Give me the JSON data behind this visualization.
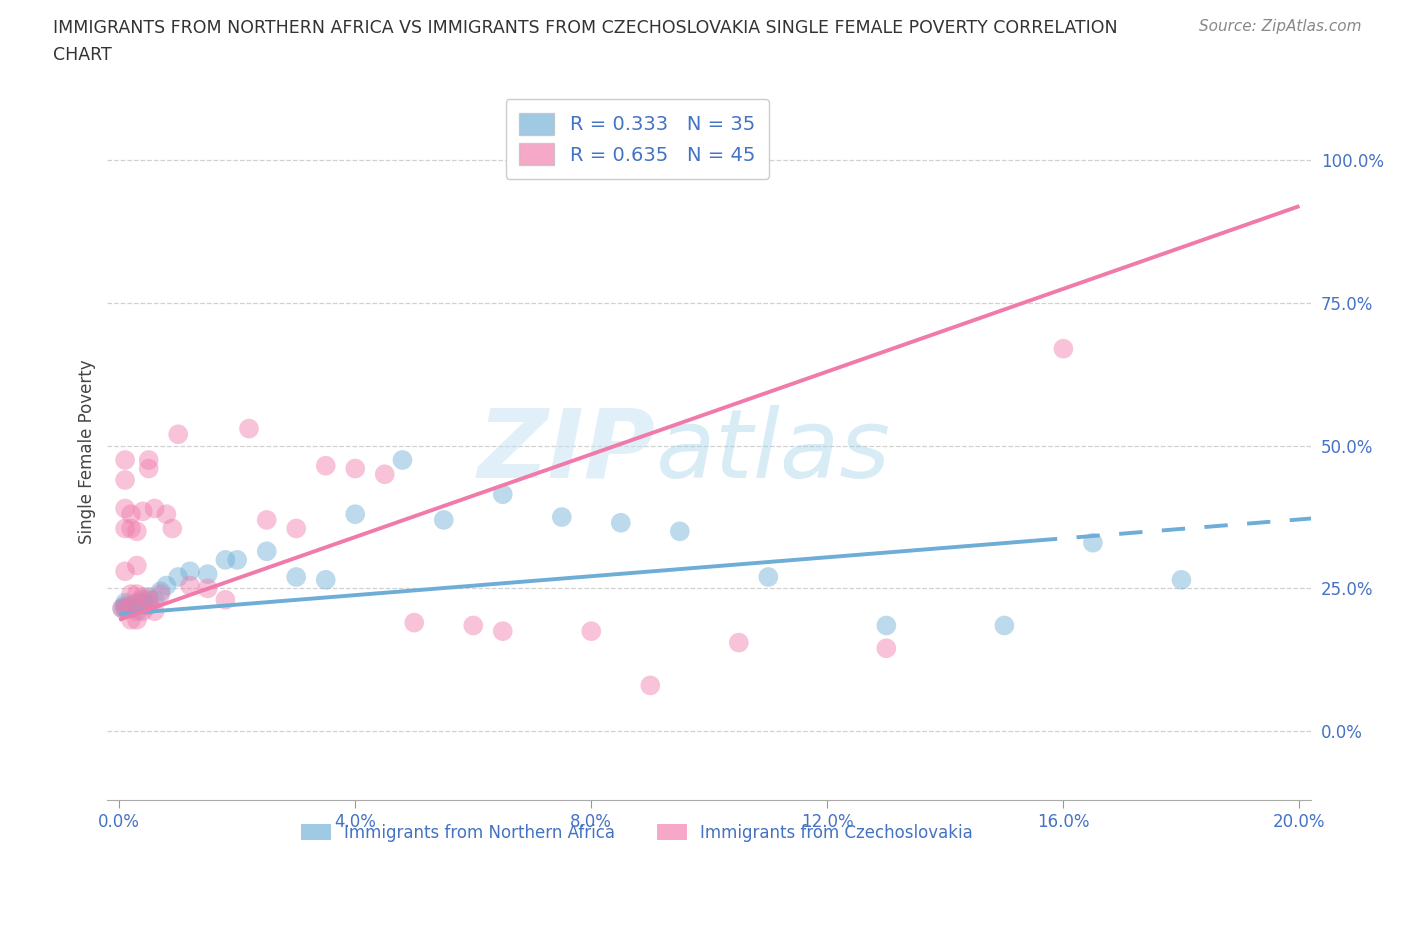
{
  "title_line1": "IMMIGRANTS FROM NORTHERN AFRICA VS IMMIGRANTS FROM CZECHOSLOVAKIA SINGLE FEMALE POVERTY CORRELATION",
  "title_line2": "CHART",
  "source": "Source: ZipAtlas.com",
  "ylabel": "Single Female Poverty",
  "xlim": [
    -0.002,
    0.202
  ],
  "ylim": [
    -0.12,
    1.1
  ],
  "xticks": [
    0.0,
    0.04,
    0.08,
    0.12,
    0.16,
    0.2
  ],
  "yticks": [
    0.0,
    0.25,
    0.5,
    0.75,
    1.0
  ],
  "blue_R": 0.333,
  "blue_N": 35,
  "pink_R": 0.635,
  "pink_N": 45,
  "blue_color": "#6dadd6",
  "pink_color": "#f07aaa",
  "blue_scatter_x": [
    0.0005,
    0.001,
    0.001,
    0.001,
    0.002,
    0.002,
    0.003,
    0.003,
    0.004,
    0.004,
    0.005,
    0.005,
    0.006,
    0.007,
    0.008,
    0.01,
    0.012,
    0.015,
    0.018,
    0.02,
    0.025,
    0.03,
    0.035,
    0.04,
    0.048,
    0.055,
    0.065,
    0.075,
    0.085,
    0.095,
    0.11,
    0.13,
    0.15,
    0.165,
    0.18
  ],
  "blue_scatter_y": [
    0.215,
    0.22,
    0.225,
    0.215,
    0.22,
    0.215,
    0.225,
    0.21,
    0.23,
    0.225,
    0.235,
    0.22,
    0.23,
    0.245,
    0.255,
    0.27,
    0.28,
    0.275,
    0.3,
    0.3,
    0.315,
    0.27,
    0.265,
    0.38,
    0.475,
    0.37,
    0.415,
    0.375,
    0.365,
    0.35,
    0.27,
    0.185,
    0.185,
    0.33,
    0.265
  ],
  "pink_scatter_x": [
    0.0005,
    0.001,
    0.001,
    0.001,
    0.001,
    0.001,
    0.001,
    0.002,
    0.002,
    0.002,
    0.002,
    0.002,
    0.003,
    0.003,
    0.003,
    0.003,
    0.004,
    0.004,
    0.004,
    0.005,
    0.005,
    0.005,
    0.006,
    0.006,
    0.007,
    0.008,
    0.009,
    0.01,
    0.012,
    0.015,
    0.018,
    0.022,
    0.025,
    0.03,
    0.035,
    0.04,
    0.045,
    0.05,
    0.06,
    0.065,
    0.08,
    0.09,
    0.105,
    0.13,
    0.16
  ],
  "pink_scatter_y": [
    0.215,
    0.39,
    0.44,
    0.475,
    0.355,
    0.28,
    0.215,
    0.38,
    0.355,
    0.24,
    0.195,
    0.215,
    0.35,
    0.29,
    0.24,
    0.195,
    0.385,
    0.235,
    0.21,
    0.475,
    0.46,
    0.23,
    0.39,
    0.21,
    0.24,
    0.38,
    0.355,
    0.52,
    0.255,
    0.25,
    0.23,
    0.53,
    0.37,
    0.355,
    0.465,
    0.46,
    0.45,
    0.19,
    0.185,
    0.175,
    0.175,
    0.08,
    0.155,
    0.145,
    0.67
  ],
  "blue_trend_x0": 0.0,
  "blue_trend_y0": 0.205,
  "blue_trend_x_solid_end": 0.155,
  "blue_trend_x1": 0.205,
  "blue_trend_y1": 0.375,
  "pink_trend_x0": 0.0,
  "pink_trend_y0": 0.195,
  "pink_trend_x1": 0.2,
  "pink_trend_y1": 0.92,
  "grid_color": "#cccccc",
  "background_color": "#ffffff"
}
